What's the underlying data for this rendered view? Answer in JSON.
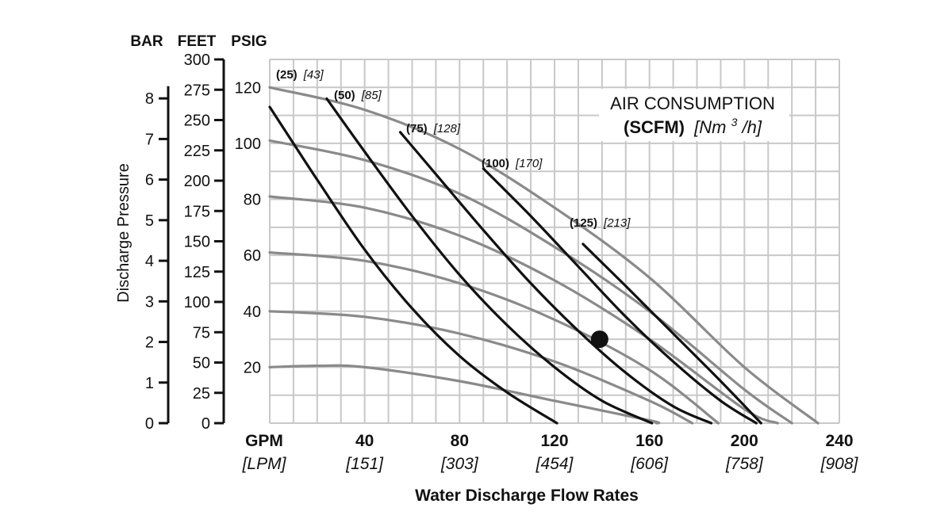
{
  "chart_data": {
    "type": "line",
    "title": "",
    "xlabel": "Water Discharge Flow Rates",
    "ylabel": "Discharge Pressure",
    "xlim": [
      0,
      240
    ],
    "ylim": [
      0,
      130
    ],
    "grid": true,
    "x_ticks": [
      {
        "value": 0,
        "label": "GPM",
        "sub": "[LPM]"
      },
      {
        "value": 40,
        "label": "40",
        "sub": "[151]"
      },
      {
        "value": 80,
        "label": "80",
        "sub": "[303]"
      },
      {
        "value": 120,
        "label": "120",
        "sub": "[454]"
      },
      {
        "value": 160,
        "label": "160",
        "sub": "[606]"
      },
      {
        "value": 200,
        "label": "200",
        "sub": "[758]"
      },
      {
        "value": 240,
        "label": "240",
        "sub": "[908]"
      }
    ],
    "y_axes": [
      {
        "header": "BAR",
        "max": 8.96,
        "ticks": [
          "0",
          "1",
          "2",
          "3",
          "4",
          "5",
          "6",
          "7",
          "8"
        ]
      },
      {
        "header": "FEET",
        "max": 300,
        "ticks": [
          "0",
          "25",
          "50",
          "75",
          "100",
          "125",
          "150",
          "175",
          "200",
          "225",
          "250",
          "275",
          "300"
        ]
      },
      {
        "header": "PSIG",
        "max": 130,
        "ticks": [
          "20",
          "40",
          "60",
          "80",
          "100",
          "120"
        ]
      }
    ],
    "legend": {
      "title_line1": "AIR CONSUMPTION",
      "unit_bold": "(SCFM)",
      "unit_italic_pre": "[Nm",
      "unit_sup": "3",
      "unit_italic_post": "/h]"
    },
    "air_curves": [
      {
        "scfm": "(25)",
        "nm3h": "[43]",
        "points": [
          [
            0,
            113
          ],
          [
            20,
            87
          ],
          [
            40,
            62
          ],
          [
            60,
            41
          ],
          [
            80,
            24
          ],
          [
            100,
            11
          ],
          [
            121,
            0
          ]
        ]
      },
      {
        "scfm": "(50)",
        "nm3h": "[85]",
        "points": [
          [
            24,
            116
          ],
          [
            40,
            97
          ],
          [
            60,
            74
          ],
          [
            80,
            53
          ],
          [
            100,
            35
          ],
          [
            120,
            20
          ],
          [
            140,
            8
          ],
          [
            161,
            0
          ]
        ]
      },
      {
        "scfm": "(75)",
        "nm3h": "[128]",
        "points": [
          [
            55,
            104
          ],
          [
            70,
            89
          ],
          [
            90,
            69
          ],
          [
            110,
            50
          ],
          [
            130,
            33
          ],
          [
            150,
            18
          ],
          [
            170,
            6
          ],
          [
            186,
            0
          ]
        ]
      },
      {
        "scfm": "(100)",
        "nm3h": "[170]",
        "points": [
          [
            90,
            91
          ],
          [
            110,
            74
          ],
          [
            130,
            56
          ],
          [
            150,
            38
          ],
          [
            170,
            22
          ],
          [
            190,
            8
          ],
          [
            205,
            0
          ]
        ]
      },
      {
        "scfm": "(125)",
        "nm3h": "[213]",
        "points": [
          [
            132,
            64
          ],
          [
            150,
            49
          ],
          [
            170,
            32
          ],
          [
            190,
            15
          ],
          [
            207,
            0
          ]
        ]
      }
    ],
    "pressure_curves": [
      {
        "points": [
          [
            0,
            120
          ],
          [
            40,
            112
          ],
          [
            80,
            98
          ],
          [
            120,
            77
          ],
          [
            160,
            52
          ],
          [
            200,
            20
          ],
          [
            231,
            0
          ]
        ]
      },
      {
        "points": [
          [
            0,
            101
          ],
          [
            40,
            94
          ],
          [
            80,
            82
          ],
          [
            120,
            63
          ],
          [
            160,
            40
          ],
          [
            200,
            12
          ],
          [
            220,
            0
          ]
        ]
      },
      {
        "points": [
          [
            0,
            81
          ],
          [
            40,
            77
          ],
          [
            80,
            67
          ],
          [
            120,
            51
          ],
          [
            160,
            30
          ],
          [
            200,
            5
          ],
          [
            214,
            0
          ]
        ]
      },
      {
        "points": [
          [
            0,
            61
          ],
          [
            40,
            58
          ],
          [
            80,
            50
          ],
          [
            120,
            37
          ],
          [
            160,
            19
          ],
          [
            189,
            0
          ]
        ]
      },
      {
        "points": [
          [
            0,
            40
          ],
          [
            40,
            38
          ],
          [
            80,
            32
          ],
          [
            120,
            22
          ],
          [
            160,
            8
          ],
          [
            178,
            0
          ]
        ]
      },
      {
        "points": [
          [
            0,
            20
          ],
          [
            20,
            20.5
          ],
          [
            40,
            20
          ],
          [
            80,
            15
          ],
          [
            120,
            8
          ],
          [
            160,
            1
          ],
          [
            163,
            0
          ]
        ]
      }
    ],
    "operating_point": {
      "x": 139,
      "y": 30
    }
  }
}
